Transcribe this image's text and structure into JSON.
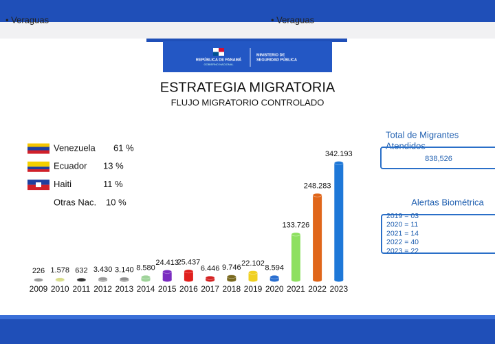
{
  "top_strip": [
    "• Veraguas",
    "• Veraguas"
  ],
  "header": {
    "left_line1": "REPÚBLICA DE PANAMÁ",
    "left_line2": "GOBIERNO NACIONAL",
    "right_line1": "MINISTERIO DE",
    "right_line2": "SEGURIDAD PÚBLICA"
  },
  "chart_data": {
    "type": "bar",
    "title": "ESTRATEGIA MIGRATORIA",
    "subtitle": "FLUJO MIGRATORIO CONTROLADO",
    "categories": [
      "2009",
      "2010",
      "2011",
      "2012",
      "2013",
      "2014",
      "2015",
      "2016",
      "2017",
      "2018",
      "2019",
      "2020",
      "2021",
      "2022",
      "2023"
    ],
    "values": [
      226,
      1578,
      632,
      3430,
      3140,
      8580,
      24413,
      25437,
      6446,
      9746,
      22102,
      8594,
      133726,
      248283,
      342193
    ],
    "value_labels": [
      "226",
      "1.578",
      "632",
      "3.430",
      "3.140",
      "8.580",
      "24.413",
      "25.437",
      "6.446",
      "9.746",
      "22.102",
      "8.594",
      "133.726",
      "248.283",
      "342.193"
    ],
    "colors": [
      "#9a9a9a",
      "#d8dc8a",
      "#333333",
      "#9a9a9a",
      "#8f8f8f",
      "#9fd39a",
      "#7a2cc0",
      "#e0201e",
      "#d42020",
      "#7a6a20",
      "#f0d020",
      "#2a6fd0",
      "#8ee060",
      "#e0661a",
      "#1e78d8"
    ],
    "legend": [
      {
        "name": "Venezuela",
        "share": 61,
        "share_label": "61 %"
      },
      {
        "name": "Ecuador",
        "share": 13,
        "share_label": "13 %"
      },
      {
        "name": "Haiti",
        "share": 11,
        "share_label": "11 %"
      },
      {
        "name": "Otras Nac.",
        "share": 10,
        "share_label": "10 %"
      }
    ]
  },
  "side_panel": {
    "total_title_1": "Total de Migrantes",
    "total_title_2": "Atendidos",
    "total_value": "838,526",
    "alerts_title": "Alertas Biométrica",
    "alerts": [
      "2019 = 03",
      "2020 = 11",
      "2021 = 14",
      "2022 = 40",
      "2023 = 22"
    ]
  }
}
